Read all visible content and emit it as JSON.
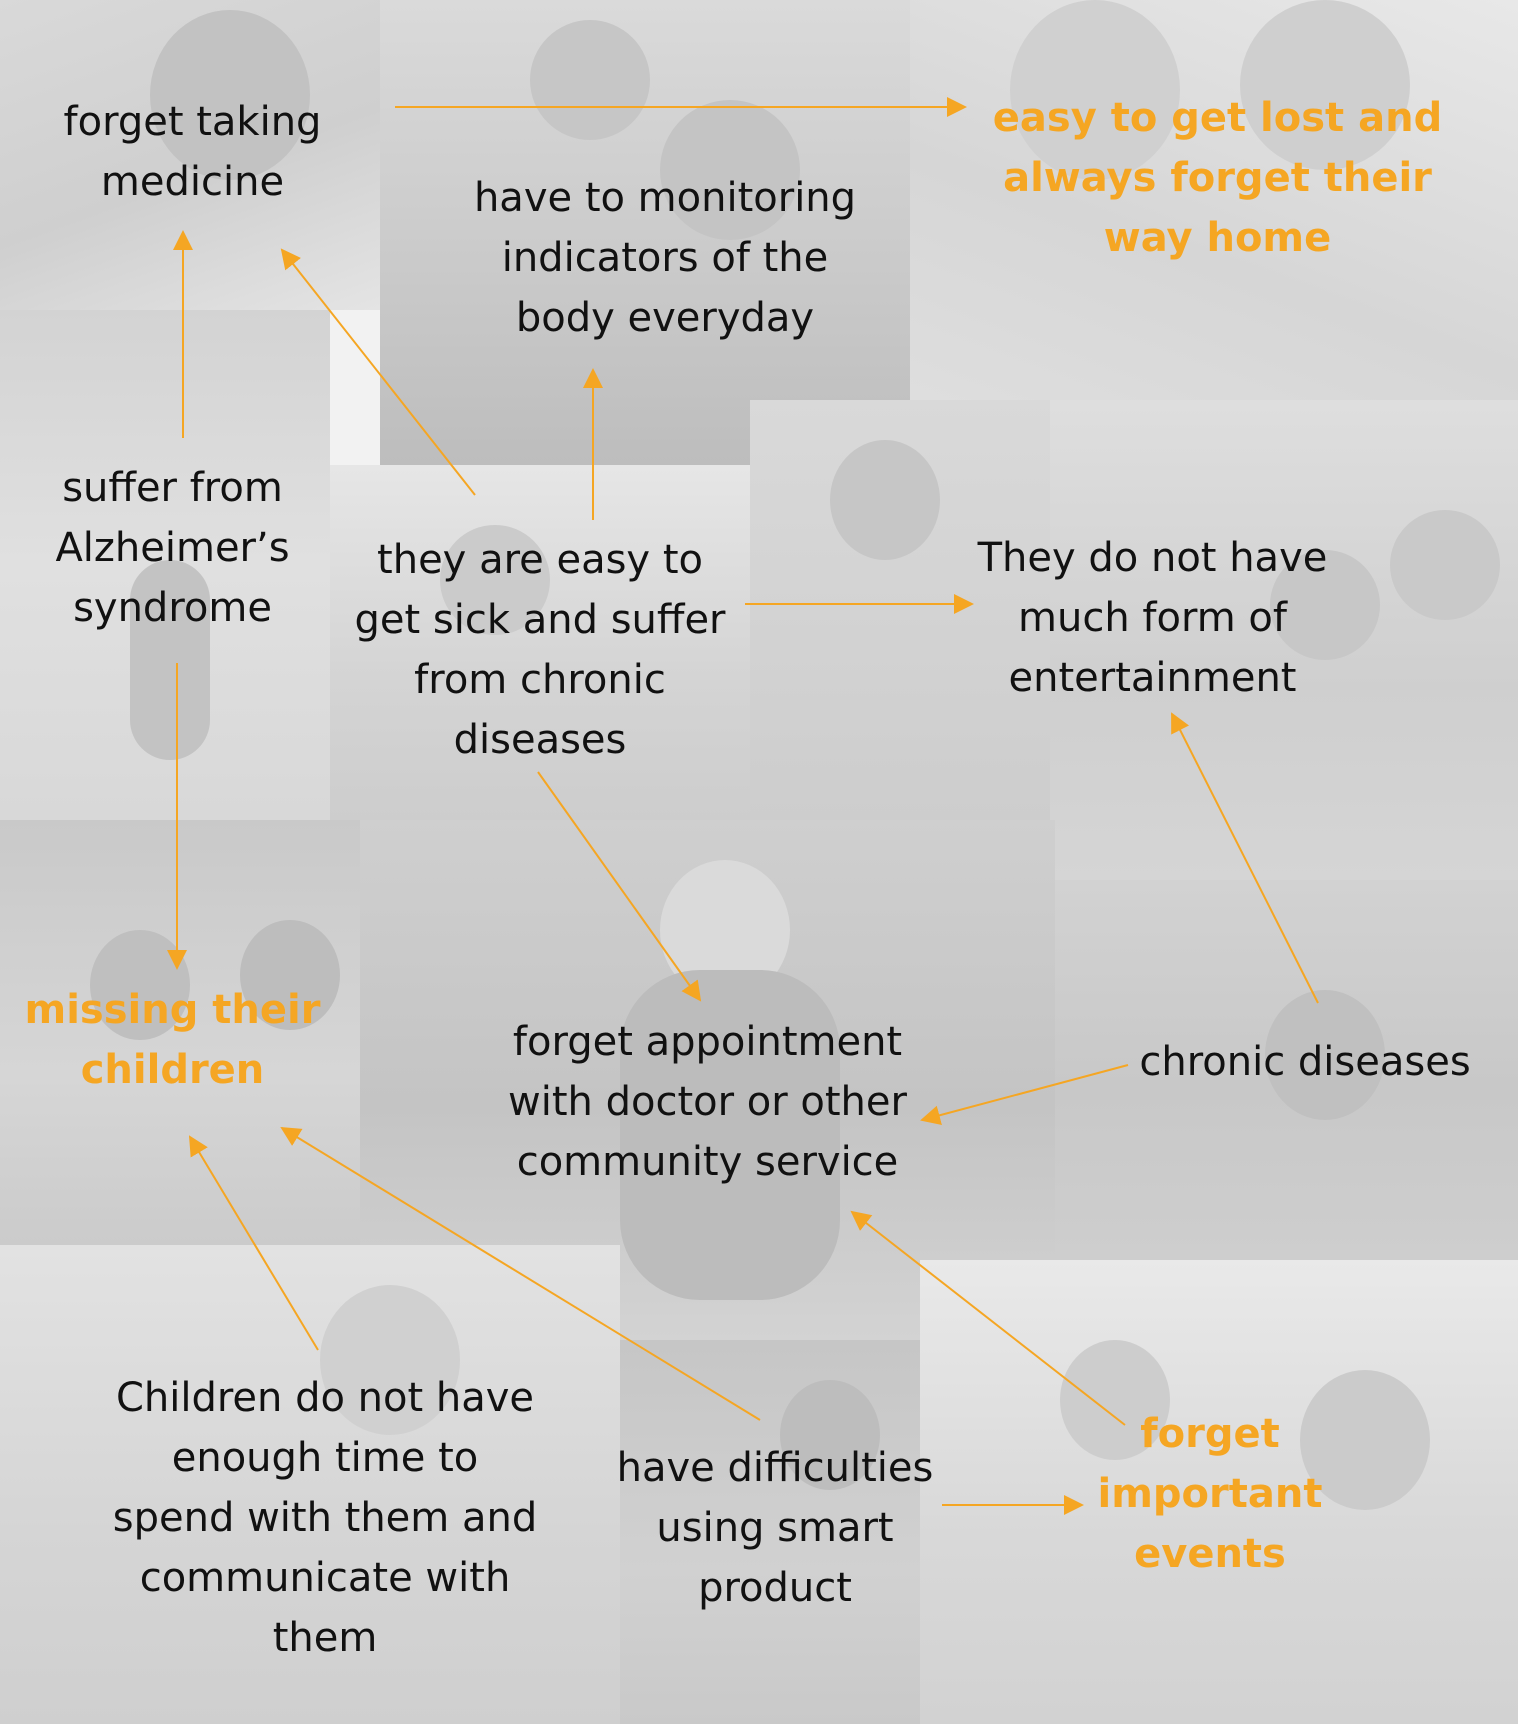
{
  "colors": {
    "highlight": "#f5a623",
    "text": "#111111",
    "arrow": "#f5a623"
  },
  "nodes": {
    "forget_medicine": {
      "lines": [
        "forget taking",
        "medicine"
      ],
      "highlight": false
    },
    "monitoring": {
      "lines": [
        "have to monitoring",
        "indicators of the",
        "body everyday"
      ],
      "highlight": false
    },
    "lost": {
      "lines": [
        "easy to get lost and",
        "always forget their",
        "way home"
      ],
      "highlight": true
    },
    "alzheimers": {
      "lines": [
        "suffer from",
        "Alzheimer’s",
        "syndrome"
      ],
      "highlight": false
    },
    "sick": {
      "lines": [
        "they are easy to",
        "get sick and suffer",
        "from chronic",
        "diseases"
      ],
      "highlight": false
    },
    "entertainment": {
      "lines": [
        "They do not have",
        "much form of",
        "entertainment"
      ],
      "highlight": false
    },
    "missing": {
      "lines": [
        "missing their",
        "children"
      ],
      "highlight": true
    },
    "appointment": {
      "lines": [
        "forget appointment",
        "with doctor or other",
        "community service"
      ],
      "highlight": false
    },
    "chronic": {
      "lines": [
        "chronic diseases"
      ],
      "highlight": false
    },
    "children_time": {
      "lines": [
        "Children do not have",
        "enough time to",
        "spend with them and",
        "communicate with",
        "them"
      ],
      "highlight": false
    },
    "smart": {
      "lines": [
        "have difficulties",
        "using smart",
        "product"
      ],
      "highlight": false
    },
    "events": {
      "lines": [
        "forget",
        "important",
        "events"
      ],
      "highlight": true
    }
  },
  "edges": [
    {
      "from": "alzheimers",
      "to": "forget_medicine"
    },
    {
      "from": "alzheimers",
      "to": "missing"
    },
    {
      "from": "sick",
      "to": "forget_medicine"
    },
    {
      "from": "sick",
      "to": "monitoring"
    },
    {
      "from": "forget_medicine",
      "to": "lost"
    },
    {
      "from": "sick",
      "to": "entertainment"
    },
    {
      "from": "sick",
      "to": "appointment"
    },
    {
      "from": "chronic",
      "to": "entertainment"
    },
    {
      "from": "chronic",
      "to": "appointment"
    },
    {
      "from": "children_time",
      "to": "missing"
    },
    {
      "from": "smart",
      "to": "missing"
    },
    {
      "from": "smart",
      "to": "events"
    },
    {
      "from": "events",
      "to": "appointment"
    }
  ]
}
